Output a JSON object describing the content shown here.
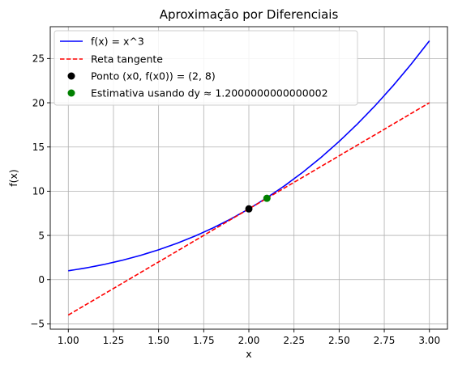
{
  "chart_data": {
    "type": "line",
    "title": "Aproximação por Diferenciais",
    "xlabel": "x",
    "ylabel": "f(x)",
    "xlim": [
      0.9,
      3.1
    ],
    "ylim": [
      -5.6,
      28.6
    ],
    "grid": true,
    "legend_position": "top-left",
    "xticks": [
      "1.00",
      "1.25",
      "1.50",
      "1.75",
      "2.00",
      "2.25",
      "2.50",
      "2.75",
      "3.00"
    ],
    "xtick_values": [
      1.0,
      1.25,
      1.5,
      1.75,
      2.0,
      2.25,
      2.5,
      2.75,
      3.0
    ],
    "yticks": [
      "−5",
      "0",
      "5",
      "10",
      "15",
      "20",
      "25"
    ],
    "ytick_values": [
      -5,
      0,
      5,
      10,
      15,
      20,
      25
    ],
    "series": [
      {
        "name": "f(x) = x^3",
        "kind": "line",
        "style": "solid",
        "color": "#0000ff",
        "x": [
          1.0,
          1.1,
          1.2,
          1.3,
          1.4,
          1.5,
          1.6,
          1.7,
          1.8,
          1.9,
          2.0,
          2.1,
          2.2,
          2.3,
          2.4,
          2.5,
          2.6,
          2.7,
          2.8,
          2.9,
          3.0
        ],
        "y": [
          1.0,
          1.331,
          1.728,
          2.197,
          2.744,
          3.375,
          4.096,
          4.913,
          5.832,
          6.859,
          8.0,
          9.261,
          10.648,
          12.167,
          13.824,
          15.625,
          17.576,
          19.683,
          21.952,
          24.389,
          27.0
        ]
      },
      {
        "name": "Reta tangente",
        "kind": "line",
        "style": "dashed",
        "color": "#ff0000",
        "x": [
          1.0,
          3.0
        ],
        "y": [
          -4.0,
          20.0
        ]
      },
      {
        "name": "Ponto (x0, f(x0)) = (2, 8)",
        "kind": "point",
        "color": "#000000",
        "x": [
          2.0
        ],
        "y": [
          8.0
        ]
      },
      {
        "name": "Estimativa usando dy ≈ 1.2000000000000002",
        "kind": "point",
        "color": "#008000",
        "x": [
          2.1
        ],
        "y": [
          9.2
        ]
      }
    ]
  }
}
